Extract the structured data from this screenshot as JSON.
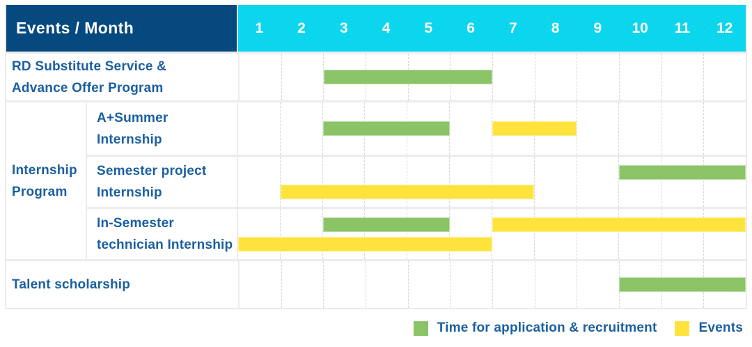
{
  "header": {
    "title": "Events / Month",
    "months": [
      "1",
      "2",
      "3",
      "4",
      "5",
      "6",
      "7",
      "8",
      "9",
      "10",
      "11",
      "12"
    ]
  },
  "chart_data": {
    "type": "gantt",
    "title": "Events / Month",
    "x_categories": [
      "1",
      "2",
      "3",
      "4",
      "5",
      "6",
      "7",
      "8",
      "9",
      "10",
      "11",
      "12"
    ],
    "x_unit": "month",
    "x_range": [
      1,
      12
    ],
    "grid": "dashed-vertical",
    "group_label": "Internship\nProgram",
    "rows": [
      {
        "label": "RD Substitute Service &\nAdvance Offer Program",
        "group": null,
        "lines": [
          [
            {
              "series": "Time for application & recruitment",
              "color": "green",
              "start_month": 3,
              "end_month": 6
            }
          ]
        ]
      },
      {
        "label": "A+Summer\nInternship",
        "group": "Internship Program",
        "lines": [
          [
            {
              "series": "Time for application & recruitment",
              "color": "green",
              "start_month": 3,
              "end_month": 5
            },
            {
              "series": "Events",
              "color": "yellow",
              "start_month": 7,
              "end_month": 8
            }
          ]
        ]
      },
      {
        "label": "Semester project\nInternship",
        "group": "Internship Program",
        "lines": [
          [
            {
              "series": "Time for application & recruitment",
              "color": "green",
              "start_month": 10,
              "end_month": 12
            }
          ],
          [
            {
              "series": "Events",
              "color": "yellow",
              "start_month": 2,
              "end_month": 7
            }
          ]
        ]
      },
      {
        "label": "In-Semester\ntechnician Internship",
        "group": "Internship Program",
        "lines": [
          [
            {
              "series": "Time for application & recruitment",
              "color": "green",
              "start_month": 3,
              "end_month": 5
            },
            {
              "series": "Events",
              "color": "yellow",
              "start_month": 7,
              "end_month": 12
            }
          ],
          [
            {
              "series": "Events",
              "color": "yellow",
              "start_month": 1,
              "end_month": 6
            }
          ]
        ]
      },
      {
        "label": "Talent scholarship",
        "group": null,
        "lines": [
          [
            {
              "series": "Time for application & recruitment",
              "color": "green",
              "start_month": 10,
              "end_month": 12
            }
          ]
        ]
      }
    ],
    "legend_position": "bottom-right"
  },
  "legend": [
    {
      "swatch": "green",
      "label": "Time for application & recruitment"
    },
    {
      "swatch": "yellow",
      "label": "Events"
    }
  ],
  "colors": {
    "navy": "#05497f",
    "cyan": "#0cd6ee",
    "green": "#8bc466",
    "yellow": "#ffe33d",
    "text_blue": "#1b5fa0",
    "grid_line": "#d6d6d6",
    "row_border": "#ececec",
    "background": "#ffffff"
  }
}
